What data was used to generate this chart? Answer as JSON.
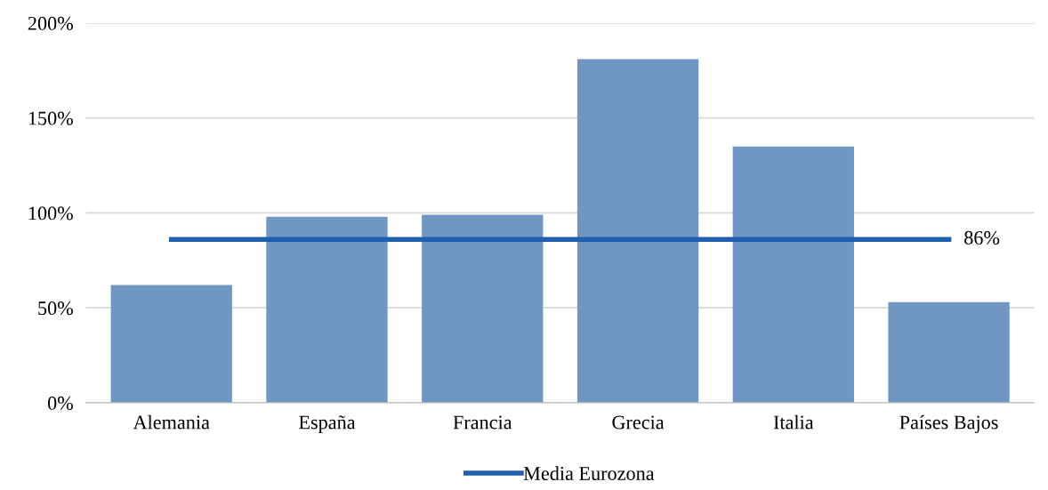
{
  "chart_data": {
    "type": "bar",
    "categories": [
      "Alemania",
      "España",
      "Francia",
      "Grecia",
      "Italia",
      "Países Bajos"
    ],
    "series": [
      {
        "color": "#7096c4",
        "values": [
          62,
          98,
          99,
          181,
          135,
          53
        ]
      },
      {
        "type": "line",
        "name": "Media Eurozona",
        "color": "#1f5fad",
        "values": [
          86,
          86,
          86,
          86,
          86,
          86
        ],
        "value_labels": [
          null,
          null,
          null,
          null,
          null,
          "86%"
        ]
      }
    ],
    "ylim": [
      0,
      200
    ],
    "yticks": [
      {
        "value": 0,
        "label": "0%"
      },
      {
        "value": 50,
        "label": "50%"
      },
      {
        "value": 100,
        "label": "100%"
      },
      {
        "value": 150,
        "label": "150%"
      },
      {
        "value": 200,
        "label": "200%"
      }
    ],
    "grid": "y",
    "legend": "bottom",
    "marker": "none"
  }
}
